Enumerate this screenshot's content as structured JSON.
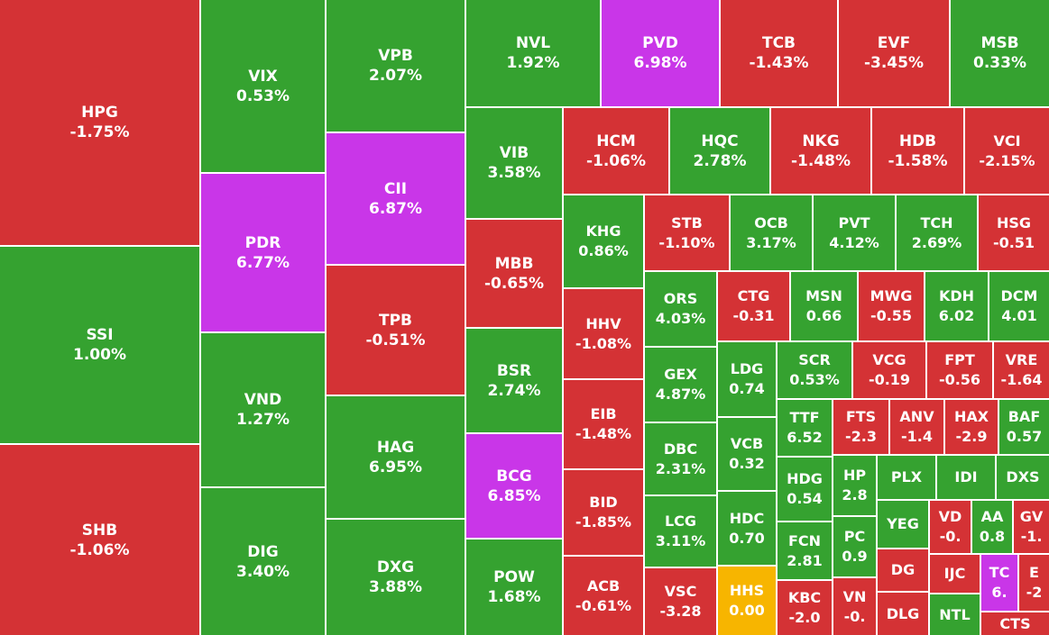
{
  "tiles": [
    {
      "ticker": "HPG",
      "change": "-1.75%",
      "color": "#d43235"
    },
    {
      "ticker": "SSI",
      "change": "1.00%",
      "color": "#35a230"
    },
    {
      "ticker": "SHB",
      "change": "-1.06%",
      "color": "#d43235"
    },
    {
      "ticker": "VIX",
      "change": "0.53%",
      "color": "#35a230"
    },
    {
      "ticker": "PDR",
      "change": "6.77%",
      "color": "#c936e8"
    },
    {
      "ticker": "VND",
      "change": "1.27%",
      "color": "#35a230"
    },
    {
      "ticker": "DIG",
      "change": "3.40%",
      "color": "#35a230"
    },
    {
      "ticker": "VPB",
      "change": "2.07%",
      "color": "#35a230"
    },
    {
      "ticker": "CII",
      "change": "6.87%",
      "color": "#c936e8"
    },
    {
      "ticker": "TPB",
      "change": "-0.51%",
      "color": "#d43235"
    },
    {
      "ticker": "HAG",
      "change": "6.95%",
      "color": "#35a230"
    },
    {
      "ticker": "DXG",
      "change": "3.88%",
      "color": "#35a230"
    },
    {
      "ticker": "NVL",
      "change": "1.92%",
      "color": "#35a230"
    },
    {
      "ticker": "PVD",
      "change": "6.98%",
      "color": "#c936e8"
    },
    {
      "ticker": "TCB",
      "change": "-1.43%",
      "color": "#d43235"
    },
    {
      "ticker": "EVF",
      "change": "-3.45%",
      "color": "#d43235"
    },
    {
      "ticker": "MSB",
      "change": "0.33%",
      "color": "#35a230"
    },
    {
      "ticker": "VIB",
      "change": "3.58%",
      "color": "#35a230"
    },
    {
      "ticker": "MBB",
      "change": "-0.65%",
      "color": "#d43235"
    },
    {
      "ticker": "BSR",
      "change": "2.74%",
      "color": "#35a230"
    },
    {
      "ticker": "BCG",
      "change": "6.85%",
      "color": "#c936e8"
    },
    {
      "ticker": "POW",
      "change": "1.68%",
      "color": "#35a230"
    },
    {
      "ticker": "HCM",
      "change": "-1.06%",
      "color": "#d43235"
    },
    {
      "ticker": "HQC",
      "change": "2.78%",
      "color": "#35a230"
    },
    {
      "ticker": "NKG",
      "change": "-1.48%",
      "color": "#d43235"
    },
    {
      "ticker": "HDB",
      "change": "-1.58%",
      "color": "#d43235"
    },
    {
      "ticker": "VCI",
      "change": "-2.15%",
      "color": "#d43235"
    },
    {
      "ticker": "KHG",
      "change": "0.86%",
      "color": "#35a230"
    },
    {
      "ticker": "HHV",
      "change": "-1.08%",
      "color": "#d43235"
    },
    {
      "ticker": "EIB",
      "change": "-1.48%",
      "color": "#d43235"
    },
    {
      "ticker": "BID",
      "change": "-1.85%",
      "color": "#d43235"
    },
    {
      "ticker": "ACB",
      "change": "-0.61%",
      "color": "#d43235"
    },
    {
      "ticker": "STB",
      "change": "-1.10%",
      "color": "#d43235"
    },
    {
      "ticker": "OCB",
      "change": "3.17%",
      "color": "#35a230"
    },
    {
      "ticker": "PVT",
      "change": "4.12%",
      "color": "#35a230"
    },
    {
      "ticker": "TCH",
      "change": "2.69%",
      "color": "#35a230"
    },
    {
      "ticker": "HSG",
      "change": "-0.51",
      "color": "#d43235"
    },
    {
      "ticker": "ORS",
      "change": "4.03%",
      "color": "#35a230"
    },
    {
      "ticker": "GEX",
      "change": "4.87%",
      "color": "#35a230"
    },
    {
      "ticker": "DBC",
      "change": "2.31%",
      "color": "#35a230"
    },
    {
      "ticker": "LCG",
      "change": "3.11%",
      "color": "#35a230"
    },
    {
      "ticker": "VSC",
      "change": "-3.28",
      "color": "#d43235"
    },
    {
      "ticker": "CTG",
      "change": "-0.31",
      "color": "#d43235"
    },
    {
      "ticker": "MSN",
      "change": "0.66",
      "color": "#35a230"
    },
    {
      "ticker": "MWG",
      "change": "-0.55",
      "color": "#d43235"
    },
    {
      "ticker": "KDH",
      "change": "6.02",
      "color": "#35a230"
    },
    {
      "ticker": "DCM",
      "change": "4.01",
      "color": "#35a230"
    },
    {
      "ticker": "LDG",
      "change": "0.74",
      "color": "#35a230"
    },
    {
      "ticker": "VCB",
      "change": "0.32",
      "color": "#35a230"
    },
    {
      "ticker": "HDC",
      "change": "0.70",
      "color": "#35a230"
    },
    {
      "ticker": "HHS",
      "change": "0.00",
      "color": "#f7b500"
    },
    {
      "ticker": "SCR",
      "change": "0.53%",
      "color": "#35a230"
    },
    {
      "ticker": "VCG",
      "change": "-0.19",
      "color": "#d43235"
    },
    {
      "ticker": "FPT",
      "change": "-0.56",
      "color": "#d43235"
    },
    {
      "ticker": "VRE",
      "change": "-1.64",
      "color": "#d43235"
    },
    {
      "ticker": "TTF",
      "change": "6.52",
      "color": "#35a230"
    },
    {
      "ticker": "HDG",
      "change": "0.54",
      "color": "#35a230"
    },
    {
      "ticker": "FCN",
      "change": "2.81",
      "color": "#35a230"
    },
    {
      "ticker": "KBC",
      "change": "-2.0",
      "color": "#d43235"
    },
    {
      "ticker": "FTS",
      "change": "-2.3",
      "color": "#d43235"
    },
    {
      "ticker": "ANV",
      "change": "-1.4",
      "color": "#d43235"
    },
    {
      "ticker": "HAX",
      "change": "-2.9",
      "color": "#d43235"
    },
    {
      "ticker": "BAF",
      "change": "0.57",
      "color": "#35a230"
    },
    {
      "ticker": "HP",
      "change": "2.8",
      "color": "#35a230"
    },
    {
      "ticker": "PC",
      "change": "0.9",
      "color": "#35a230"
    },
    {
      "ticker": "VN",
      "change": "-0.",
      "color": "#d43235"
    },
    {
      "ticker": "PLX",
      "color": "#35a230"
    },
    {
      "ticker": "IDI",
      "color": "#35a230"
    },
    {
      "ticker": "DXS",
      "color": "#35a230"
    },
    {
      "ticker": "YEG",
      "color": "#35a230"
    },
    {
      "ticker": "DG",
      "color": "#d43235"
    },
    {
      "ticker": "DLG",
      "color": "#d43235"
    },
    {
      "ticker": "VD",
      "change": "-0.",
      "color": "#d43235"
    },
    {
      "ticker": "AA",
      "change": "0.8",
      "color": "#35a230"
    },
    {
      "ticker": "GV",
      "change": "-1.",
      "color": "#d43235"
    },
    {
      "ticker": "IJC",
      "color": "#d43235"
    },
    {
      "ticker": "TC",
      "change": "6.",
      "color": "#c936e8"
    },
    {
      "ticker": "E",
      "change": "-2",
      "color": "#d43235"
    },
    {
      "ticker": "NTL",
      "color": "#35a230"
    },
    {
      "ticker": "CTS",
      "color": "#d43235"
    }
  ]
}
